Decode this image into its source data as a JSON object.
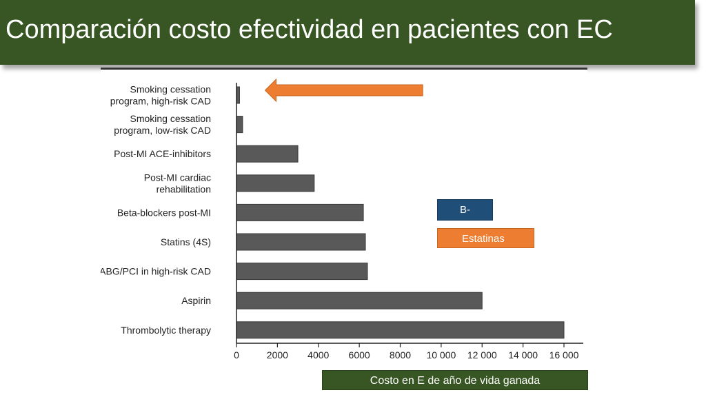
{
  "slide": {
    "title": "Comparación costo efectividad en pacientes con EC"
  },
  "legend": {
    "items": [
      {
        "label": "B-",
        "color": "#1f4e79"
      },
      {
        "label": "Estatinas",
        "color": "#ed7d31"
      }
    ]
  },
  "footer": {
    "label": "Costo en E de año de vida ganada"
  },
  "colors": {
    "bar": "#595959",
    "arrow": "#ed7d31",
    "title_bg": "#375623"
  },
  "chart_data": {
    "type": "bar",
    "orientation": "horizontal",
    "categories": [
      "Smoking cessation program, high-risk CAD",
      "Smoking cessation program, low-risk CAD",
      "Post-MI ACE-inhibitors",
      "Post-MI cardiac rehabilitation",
      "Beta-blockers post-MI",
      "Statins (4S)",
      "CABG/PCI in high-risk CAD",
      "Aspirin",
      "Thrombolytic therapy"
    ],
    "category_lines": [
      [
        "Smoking cessation",
        "program, high-risk CAD"
      ],
      [
        "Smoking cessation",
        "program, low-risk CAD"
      ],
      [
        "Post-MI ACE-inhibitors"
      ],
      [
        "Post-MI cardiac",
        "rehabilitation"
      ],
      [
        "Beta-blockers post-MI"
      ],
      [
        "Statins (4S)"
      ],
      [
        "CABG/PCI in high-risk CAD"
      ],
      [
        "Aspirin"
      ],
      [
        "Thrombolytic therapy"
      ]
    ],
    "values": [
      150,
      300,
      3000,
      3800,
      6200,
      6300,
      6400,
      12000,
      16000
    ],
    "xlim": [
      0,
      17000
    ],
    "xticks": [
      0,
      2000,
      4000,
      6000,
      8000,
      10000,
      12000,
      14000,
      16000
    ],
    "xtick_labels": [
      "0",
      "2000",
      "4000",
      "6000",
      "8000",
      "10 000",
      "12 000",
      "14 000",
      "16 000"
    ],
    "annotation_arrow": {
      "from_value": 9100,
      "to_value": 1400,
      "category_index": 0
    },
    "grid": false,
    "xlabel": "",
    "ylabel": ""
  }
}
